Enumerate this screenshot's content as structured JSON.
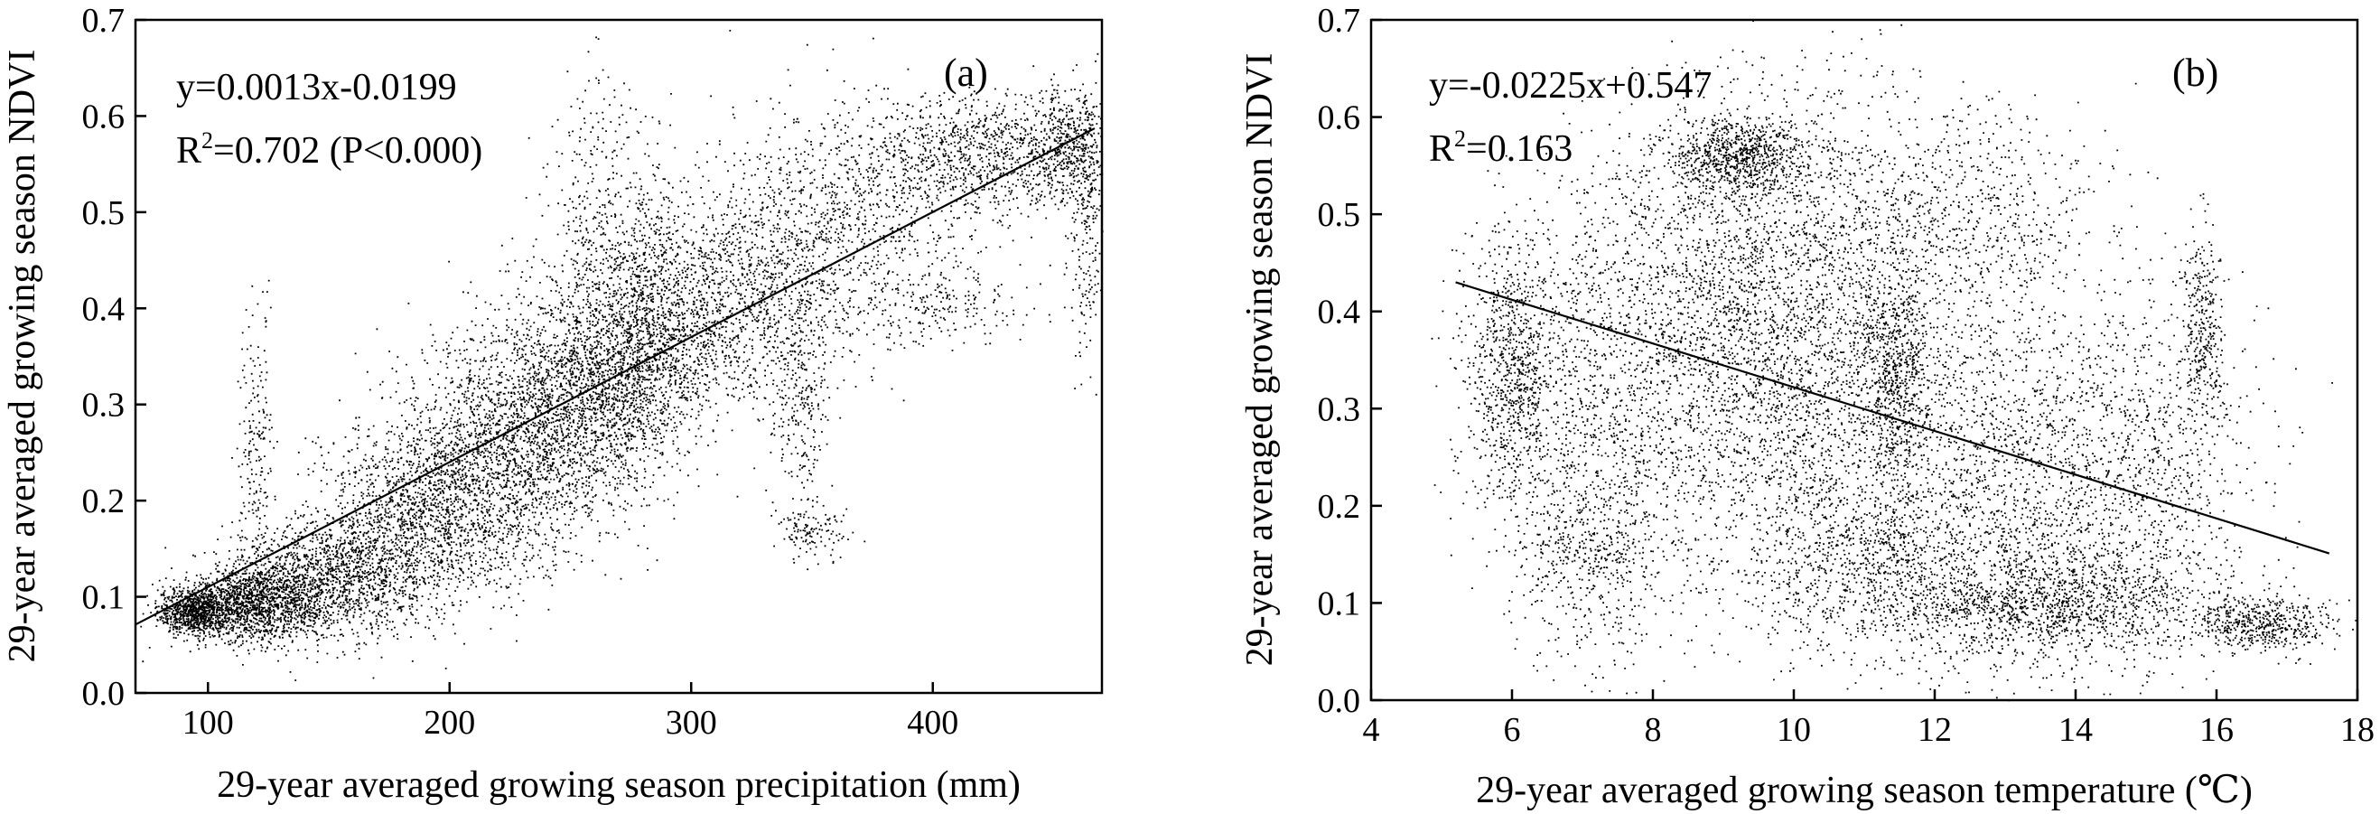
{
  "chart_data": [
    {
      "type": "scatter",
      "panel_label": "(a)",
      "xlabel": "29-year averaged growing season precipitation (mm)",
      "ylabel": "29-year averaged growing season NDVI",
      "xlim": [
        70,
        470
      ],
      "ylim": [
        0.0,
        0.7
      ],
      "xticks": [
        100,
        200,
        300,
        400
      ],
      "xtick_labels": [
        "100",
        "200",
        "300",
        "400"
      ],
      "yticks": [
        0.0,
        0.1,
        0.2,
        0.3,
        0.4,
        0.5,
        0.6,
        0.7
      ],
      "ytick_labels": [
        "0.0",
        "0.1",
        "0.2",
        "0.3",
        "0.4",
        "0.5",
        "0.6",
        "0.7"
      ],
      "equation": "y=0.0013x-0.0199",
      "r2_prefix": "R",
      "r2_sup": "2",
      "r2_value": "=0.702 (P<0.000)",
      "fit": {
        "slope": 0.0013,
        "intercept": -0.0199,
        "x_range": [
          70,
          467
        ]
      },
      "clusters": [
        {
          "x": 95,
          "y": 0.085,
          "sx": 8,
          "sy": 0.012,
          "n": 900
        },
        {
          "x": 120,
          "y": 0.095,
          "sx": 15,
          "sy": 0.02,
          "n": 1400
        },
        {
          "x": 150,
          "y": 0.12,
          "sx": 20,
          "sy": 0.03,
          "n": 1300
        },
        {
          "x": 185,
          "y": 0.18,
          "sx": 22,
          "sy": 0.045,
          "n": 1300
        },
        {
          "x": 215,
          "y": 0.24,
          "sx": 22,
          "sy": 0.055,
          "n": 1400
        },
        {
          "x": 245,
          "y": 0.3,
          "sx": 20,
          "sy": 0.06,
          "n": 1500
        },
        {
          "x": 270,
          "y": 0.34,
          "sx": 16,
          "sy": 0.06,
          "n": 1200
        },
        {
          "x": 295,
          "y": 0.38,
          "sx": 16,
          "sy": 0.055,
          "n": 900
        },
        {
          "x": 330,
          "y": 0.43,
          "sx": 20,
          "sy": 0.06,
          "n": 900
        },
        {
          "x": 345,
          "y": 0.3,
          "sx": 6,
          "sy": 0.06,
          "n": 250
        },
        {
          "x": 370,
          "y": 0.5,
          "sx": 25,
          "sy": 0.06,
          "n": 800
        },
        {
          "x": 420,
          "y": 0.56,
          "sx": 25,
          "sy": 0.03,
          "n": 900
        },
        {
          "x": 455,
          "y": 0.57,
          "sx": 10,
          "sy": 0.03,
          "n": 500
        },
        {
          "x": 463,
          "y": 0.48,
          "sx": 4,
          "sy": 0.06,
          "n": 200
        },
        {
          "x": 120,
          "y": 0.25,
          "sx": 4,
          "sy": 0.08,
          "n": 200
        },
        {
          "x": 260,
          "y": 0.5,
          "sx": 8,
          "sy": 0.07,
          "n": 300
        },
        {
          "x": 283,
          "y": 0.45,
          "sx": 6,
          "sy": 0.06,
          "n": 250
        },
        {
          "x": 350,
          "y": 0.17,
          "sx": 8,
          "sy": 0.015,
          "n": 120
        },
        {
          "x": 400,
          "y": 0.4,
          "sx": 20,
          "sy": 0.02,
          "n": 200
        }
      ]
    },
    {
      "type": "scatter",
      "panel_label": "(b)",
      "xlabel": "29-year averaged growing season temperature (℃)",
      "ylabel": "29-year averaged growing season NDVI",
      "xlim": [
        4,
        18
      ],
      "ylim": [
        0.0,
        0.7
      ],
      "xticks": [
        4,
        6,
        8,
        10,
        12,
        14,
        16,
        18
      ],
      "xtick_labels": [
        "4",
        "6",
        "8",
        "10",
        "12",
        "14",
        "16",
        "18"
      ],
      "yticks": [
        0.0,
        0.1,
        0.2,
        0.3,
        0.4,
        0.5,
        0.6,
        0.7
      ],
      "ytick_labels": [
        "0.0",
        "0.1",
        "0.2",
        "0.3",
        "0.4",
        "0.5",
        "0.6",
        "0.7"
      ],
      "equation": "y=-0.0225x+0.547",
      "r2_prefix": "R",
      "r2_sup": "2",
      "r2_value": "=0.163",
      "fit": {
        "slope": -0.0225,
        "intercept": 0.547,
        "x_range": [
          5.2,
          17.6
        ]
      },
      "clusters": [
        {
          "x": 6.0,
          "y": 0.34,
          "sx": 0.35,
          "sy": 0.07,
          "n": 900
        },
        {
          "x": 7.5,
          "y": 0.3,
          "sx": 0.8,
          "sy": 0.12,
          "n": 1300
        },
        {
          "x": 9.2,
          "y": 0.56,
          "sx": 0.5,
          "sy": 0.02,
          "n": 800
        },
        {
          "x": 9.5,
          "y": 0.35,
          "sx": 0.7,
          "sy": 0.12,
          "n": 1400
        },
        {
          "x": 10.7,
          "y": 0.4,
          "sx": 0.8,
          "sy": 0.12,
          "n": 1300
        },
        {
          "x": 11.4,
          "y": 0.33,
          "sx": 0.25,
          "sy": 0.05,
          "n": 600
        },
        {
          "x": 11.0,
          "y": 0.15,
          "sx": 0.8,
          "sy": 0.05,
          "n": 900
        },
        {
          "x": 12.5,
          "y": 0.25,
          "sx": 0.8,
          "sy": 0.12,
          "n": 1100
        },
        {
          "x": 13.5,
          "y": 0.1,
          "sx": 1.2,
          "sy": 0.025,
          "n": 1200
        },
        {
          "x": 14.0,
          "y": 0.2,
          "sx": 0.8,
          "sy": 0.1,
          "n": 900
        },
        {
          "x": 15.2,
          "y": 0.25,
          "sx": 0.7,
          "sy": 0.1,
          "n": 700
        },
        {
          "x": 15.8,
          "y": 0.38,
          "sx": 0.15,
          "sy": 0.05,
          "n": 300
        },
        {
          "x": 16.7,
          "y": 0.08,
          "sx": 0.5,
          "sy": 0.015,
          "n": 500
        },
        {
          "x": 12.5,
          "y": 0.5,
          "sx": 0.9,
          "sy": 0.06,
          "n": 600
        },
        {
          "x": 8.5,
          "y": 0.45,
          "sx": 0.8,
          "sy": 0.08,
          "n": 600
        },
        {
          "x": 7.0,
          "y": 0.15,
          "sx": 0.6,
          "sy": 0.05,
          "n": 400
        }
      ]
    }
  ]
}
